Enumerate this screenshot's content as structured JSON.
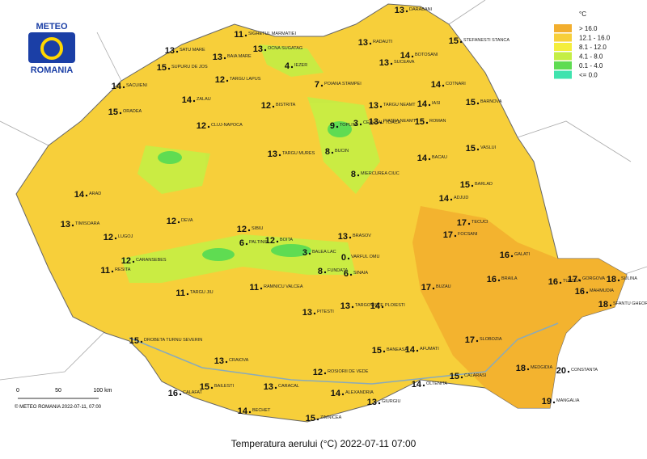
{
  "header": {
    "logo_top": "METEO",
    "logo_bottom": "ROMANIA"
  },
  "legend": {
    "title": "°C",
    "items": [
      {
        "label": "> 16.0",
        "color": "#f2ae2e"
      },
      {
        "label": "12.1 - 16.0",
        "color": "#f7cf3a"
      },
      {
        "label": "8.1 - 12.0",
        "color": "#f4ee3c"
      },
      {
        "label": "4.1 - 8.0",
        "color": "#c4ee45"
      },
      {
        "label": "0.1 - 4.0",
        "color": "#5fdc52"
      },
      {
        "label": "<= 0.0",
        "color": "#3fe3ae"
      }
    ]
  },
  "scale": {
    "ticks": [
      "0",
      "50",
      "100 km"
    ]
  },
  "copyright": "© METEO ROMANIA 2022-07-11, 07:00",
  "caption": "Temperatura aerului (°C) 2022-07-11 07:00",
  "stations": [
    {
      "name": "DARABANI",
      "value": 13
    },
    {
      "name": "STEFANESTI STANCA",
      "value": 15
    },
    {
      "name": "RADAUTI",
      "value": 13
    },
    {
      "name": "BOTOSANI",
      "value": 14
    },
    {
      "name": "SUCEAVA",
      "value": 13
    },
    {
      "name": "SIGHETUL MARMATIEI",
      "value": 11
    },
    {
      "name": "OCNA SUGATAG",
      "value": 13
    },
    {
      "name": "SATU MARE",
      "value": 13
    },
    {
      "name": "BAIA MARE",
      "value": 13
    },
    {
      "name": "IEZER",
      "value": 4
    },
    {
      "name": "SUPURU DE JOS",
      "value": 15
    },
    {
      "name": "TARGU LAPUS",
      "value": 12
    },
    {
      "name": "COTNARI",
      "value": 14
    },
    {
      "name": "IASI",
      "value": 14
    },
    {
      "name": "BARNOVA",
      "value": 15
    },
    {
      "name": "SACUIENI",
      "value": 14
    },
    {
      "name": "ORADEA",
      "value": 15
    },
    {
      "name": "BISTRITA",
      "value": 12
    },
    {
      "name": "POIANA STAMPEI",
      "value": 7
    },
    {
      "name": "ZALAU",
      "value": 14
    },
    {
      "name": "TOPLITA",
      "value": 9
    },
    {
      "name": "CEAHLAU TOACA",
      "value": 3
    },
    {
      "name": "PIATRA NEAMT",
      "value": 13
    },
    {
      "name": "TARGU NEAMT",
      "value": 13
    },
    {
      "name": "ROMAN",
      "value": 15
    },
    {
      "name": "VASLUI",
      "value": 15
    },
    {
      "name": "BACAU",
      "value": 14
    },
    {
      "name": "BARLAD",
      "value": 15
    },
    {
      "name": "ADJUD",
      "value": 14
    },
    {
      "name": "TECUCI",
      "value": 17
    },
    {
      "name": "FOCSANI",
      "value": 17
    },
    {
      "name": "GALATI",
      "value": 16
    },
    {
      "name": "BRAILA",
      "value": 16
    },
    {
      "name": "TULCEA",
      "value": 16
    },
    {
      "name": "GORGOVA",
      "value": 17
    },
    {
      "name": "SULINA",
      "value": 18
    },
    {
      "name": "SFANTU GHEORGHE",
      "value": 18
    },
    {
      "name": "MAHMUDIA",
      "value": 16
    },
    {
      "name": "CLUJ-NAPOCA",
      "value": 12
    },
    {
      "name": "BUCIN",
      "value": 8
    },
    {
      "name": "MIERCUREA CIUC",
      "value": 8
    },
    {
      "name": "BRASOV",
      "value": 13
    },
    {
      "name": "TARGU MURES",
      "value": 13
    },
    {
      "name": "SIBIU",
      "value": 12
    },
    {
      "name": "DEVA",
      "value": 12
    },
    {
      "name": "TIMISOARA",
      "value": 13
    },
    {
      "name": "ARAD",
      "value": 14
    },
    {
      "name": "RESITA",
      "value": 11
    },
    {
      "name": "CARANSEBES",
      "value": 12
    },
    {
      "name": "DROBETA TURNU SEVERIN",
      "value": 15
    },
    {
      "name": "TARGU JIU",
      "value": 11
    },
    {
      "name": "RAMNICU VALCEA",
      "value": 11
    },
    {
      "name": "PITESTI",
      "value": 13
    },
    {
      "name": "TARGOVISTE",
      "value": 13
    },
    {
      "name": "PLOIESTI",
      "value": 14
    },
    {
      "name": "BUZAU",
      "value": 17
    },
    {
      "name": "BANEASA",
      "value": 15
    },
    {
      "name": "AFUMATI",
      "value": 14
    },
    {
      "name": "CRAIOVA",
      "value": 13
    },
    {
      "name": "CALAFAT",
      "value": 16
    },
    {
      "name": "BECHET",
      "value": 14
    },
    {
      "name": "ROSIORII DE VEDE",
      "value": 12
    },
    {
      "name": "ALEXANDRIA",
      "value": 14
    },
    {
      "name": "GIURGIU",
      "value": 13
    },
    {
      "name": "ZIMNICEA",
      "value": 15
    },
    {
      "name": "OLTENITA",
      "value": 14
    },
    {
      "name": "CALARASI",
      "value": 15
    },
    {
      "name": "SLOBOZIA",
      "value": 17
    },
    {
      "name": "CONSTANTA",
      "value": 20
    },
    {
      "name": "MANGALIA",
      "value": 19
    },
    {
      "name": "MEDGIDIA",
      "value": 18
    },
    {
      "name": "BALEA LAC",
      "value": 3
    },
    {
      "name": "VARFUL OMU",
      "value": 0
    },
    {
      "name": "SINAIA",
      "value": 6
    },
    {
      "name": "FUNDATA",
      "value": 8
    },
    {
      "name": "PALTINIS",
      "value": 6
    },
    {
      "name": "CARACAL",
      "value": 13
    },
    {
      "name": "BAILESTI",
      "value": 15
    },
    {
      "name": "LUGOJ",
      "value": 12
    },
    {
      "name": "BOITA",
      "value": 12
    }
  ]
}
